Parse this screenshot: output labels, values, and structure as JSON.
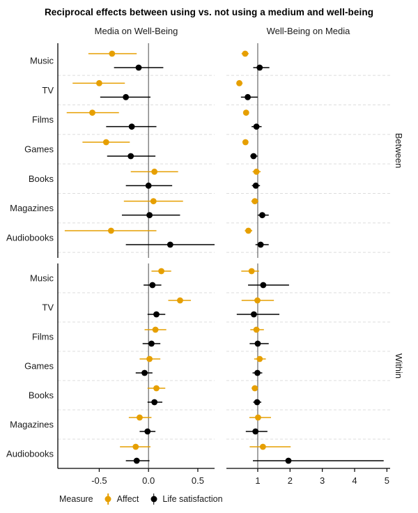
{
  "chart_data": {
    "type": "pointrange-forest",
    "title": "Reciprocal effects between using vs. not using a medium and well-being",
    "facet_rows": [
      "Between",
      "Within"
    ],
    "categories": [
      "Music",
      "TV",
      "Films",
      "Games",
      "Books",
      "Magazines",
      "Audiobooks"
    ],
    "series": [
      {
        "key": "affect",
        "label": "Affect",
        "color": "#E69F00"
      },
      {
        "key": "life",
        "label": "Life satisfaction",
        "color": "#000000"
      }
    ],
    "legend": {
      "title": "Measure",
      "position": "bottom-left"
    },
    "style": {
      "ref_line_color": "#5a5a5a",
      "separator_color": "#dcdcdc",
      "axis_color": "#000000",
      "grid": "dashed horizontal category separators"
    },
    "panels": [
      {
        "title": "Media on Well-Being",
        "xlim": [
          -0.92,
          0.67
        ],
        "xticks": [
          -0.5,
          0.0,
          0.5
        ],
        "xtick_labels": [
          "-0.5",
          "0.0",
          "0.5"
        ],
        "ref_line": 0,
        "sections": [
          {
            "name": "Between",
            "rows": [
              {
                "category": "Music",
                "affect": {
                  "est": -0.37,
                  "lo": -0.61,
                  "hi": -0.12
                },
                "life": {
                  "est": -0.1,
                  "lo": -0.35,
                  "hi": 0.15
                }
              },
              {
                "category": "TV",
                "affect": {
                  "est": -0.5,
                  "lo": -0.77,
                  "hi": -0.24
                },
                "life": {
                  "est": -0.23,
                  "lo": -0.49,
                  "hi": 0.02
                }
              },
              {
                "category": "Films",
                "affect": {
                  "est": -0.57,
                  "lo": -0.83,
                  "hi": -0.3
                },
                "life": {
                  "est": -0.17,
                  "lo": -0.43,
                  "hi": 0.08
                }
              },
              {
                "category": "Games",
                "affect": {
                  "est": -0.43,
                  "lo": -0.67,
                  "hi": -0.19
                },
                "life": {
                  "est": -0.18,
                  "lo": -0.42,
                  "hi": 0.07
                }
              },
              {
                "category": "Books",
                "affect": {
                  "est": 0.06,
                  "lo": -0.18,
                  "hi": 0.3
                },
                "life": {
                  "est": 0.0,
                  "lo": -0.23,
                  "hi": 0.24
                }
              },
              {
                "category": "Magazines",
                "affect": {
                  "est": 0.05,
                  "lo": -0.25,
                  "hi": 0.35
                },
                "life": {
                  "est": 0.01,
                  "lo": -0.27,
                  "hi": 0.32
                }
              },
              {
                "category": "Audiobooks",
                "affect": {
                  "est": -0.38,
                  "lo": -0.85,
                  "hi": 0.08
                },
                "life": {
                  "est": 0.22,
                  "lo": -0.23,
                  "hi": 0.67
                }
              }
            ]
          },
          {
            "name": "Within",
            "rows": [
              {
                "category": "Music",
                "affect": {
                  "est": 0.13,
                  "lo": 0.03,
                  "hi": 0.23
                },
                "life": {
                  "est": 0.04,
                  "lo": -0.05,
                  "hi": 0.13
                }
              },
              {
                "category": "TV",
                "affect": {
                  "est": 0.32,
                  "lo": 0.2,
                  "hi": 0.43
                },
                "life": {
                  "est": 0.08,
                  "lo": -0.01,
                  "hi": 0.17
                }
              },
              {
                "category": "Films",
                "affect": {
                  "est": 0.07,
                  "lo": -0.04,
                  "hi": 0.18
                },
                "life": {
                  "est": 0.03,
                  "lo": -0.06,
                  "hi": 0.12
                }
              },
              {
                "category": "Games",
                "affect": {
                  "est": 0.01,
                  "lo": -0.09,
                  "hi": 0.12
                },
                "life": {
                  "est": -0.04,
                  "lo": -0.13,
                  "hi": 0.04
                }
              },
              {
                "category": "Books",
                "affect": {
                  "est": 0.08,
                  "lo": -0.01,
                  "hi": 0.17
                },
                "life": {
                  "est": 0.06,
                  "lo": -0.01,
                  "hi": 0.14
                }
              },
              {
                "category": "Magazines",
                "affect": {
                  "est": -0.09,
                  "lo": -0.2,
                  "hi": 0.03
                },
                "life": {
                  "est": -0.01,
                  "lo": -0.09,
                  "hi": 0.07
                }
              },
              {
                "category": "Audiobooks",
                "affect": {
                  "est": -0.13,
                  "lo": -0.29,
                  "hi": 0.02
                },
                "life": {
                  "est": -0.12,
                  "lo": -0.23,
                  "hi": 0.01
                }
              }
            ]
          }
        ]
      },
      {
        "title": "Well-Being on Media",
        "xlim": [
          0.03,
          5.1
        ],
        "xticks": [
          1,
          2,
          3,
          4,
          5
        ],
        "xtick_labels": [
          "1",
          "2",
          "3",
          "4",
          "5"
        ],
        "ref_line": 1,
        "sections": [
          {
            "name": "Between",
            "rows": [
              {
                "category": "Music",
                "affect": {
                  "est": 0.61,
                  "lo": 0.5,
                  "hi": 0.72
                },
                "life": {
                  "est": 1.06,
                  "lo": 0.86,
                  "hi": 1.36
                }
              },
              {
                "category": "TV",
                "affect": {
                  "est": 0.43,
                  "lo": 0.34,
                  "hi": 0.53
                },
                "life": {
                  "est": 0.69,
                  "lo": 0.48,
                  "hi": 1.0
                }
              },
              {
                "category": "Films",
                "affect": {
                  "est": 0.64,
                  "lo": 0.57,
                  "hi": 0.71
                },
                "life": {
                  "est": 0.96,
                  "lo": 0.81,
                  "hi": 1.12
                }
              },
              {
                "category": "Games",
                "affect": {
                  "est": 0.62,
                  "lo": 0.53,
                  "hi": 0.7
                },
                "life": {
                  "est": 0.87,
                  "lo": 0.77,
                  "hi": 0.99
                }
              },
              {
                "category": "Books",
                "affect": {
                  "est": 0.96,
                  "lo": 0.84,
                  "hi": 1.09
                },
                "life": {
                  "est": 0.94,
                  "lo": 0.82,
                  "hi": 1.07
                }
              },
              {
                "category": "Magazines",
                "affect": {
                  "est": 0.91,
                  "lo": 0.8,
                  "hi": 1.02
                },
                "life": {
                  "est": 1.14,
                  "lo": 1.0,
                  "hi": 1.34
                }
              },
              {
                "category": "Audiobooks",
                "affect": {
                  "est": 0.71,
                  "lo": 0.6,
                  "hi": 0.83
                },
                "life": {
                  "est": 1.09,
                  "lo": 0.93,
                  "hi": 1.34
                }
              }
            ]
          },
          {
            "name": "Within",
            "rows": [
              {
                "category": "Music",
                "affect": {
                  "est": 0.81,
                  "lo": 0.49,
                  "hi": 1.04
                },
                "life": {
                  "est": 1.17,
                  "lo": 0.7,
                  "hi": 1.97
                }
              },
              {
                "category": "TV",
                "affect": {
                  "est": 0.99,
                  "lo": 0.5,
                  "hi": 1.5
                },
                "life": {
                  "est": 0.88,
                  "lo": 0.35,
                  "hi": 1.67
                }
              },
              {
                "category": "Films",
                "affect": {
                  "est": 0.96,
                  "lo": 0.77,
                  "hi": 1.19
                },
                "life": {
                  "est": 1.0,
                  "lo": 0.75,
                  "hi": 1.34
                }
              },
              {
                "category": "Games",
                "affect": {
                  "est": 1.06,
                  "lo": 0.89,
                  "hi": 1.25
                },
                "life": {
                  "est": 0.99,
                  "lo": 0.84,
                  "hi": 1.14
                }
              },
              {
                "category": "Books",
                "affect": {
                  "est": 0.91,
                  "lo": 0.81,
                  "hi": 1.0
                },
                "life": {
                  "est": 0.98,
                  "lo": 0.86,
                  "hi": 1.11
                }
              },
              {
                "category": "Magazines",
                "affect": {
                  "est": 1.01,
                  "lo": 0.74,
                  "hi": 1.41
                },
                "life": {
                  "est": 0.93,
                  "lo": 0.63,
                  "hi": 1.3
                }
              },
              {
                "category": "Audiobooks",
                "affect": {
                  "est": 1.16,
                  "lo": 0.75,
                  "hi": 2.02
                },
                "life": {
                  "est": 1.95,
                  "lo": 0.85,
                  "hi": 4.9
                }
              }
            ]
          }
        ]
      }
    ]
  }
}
